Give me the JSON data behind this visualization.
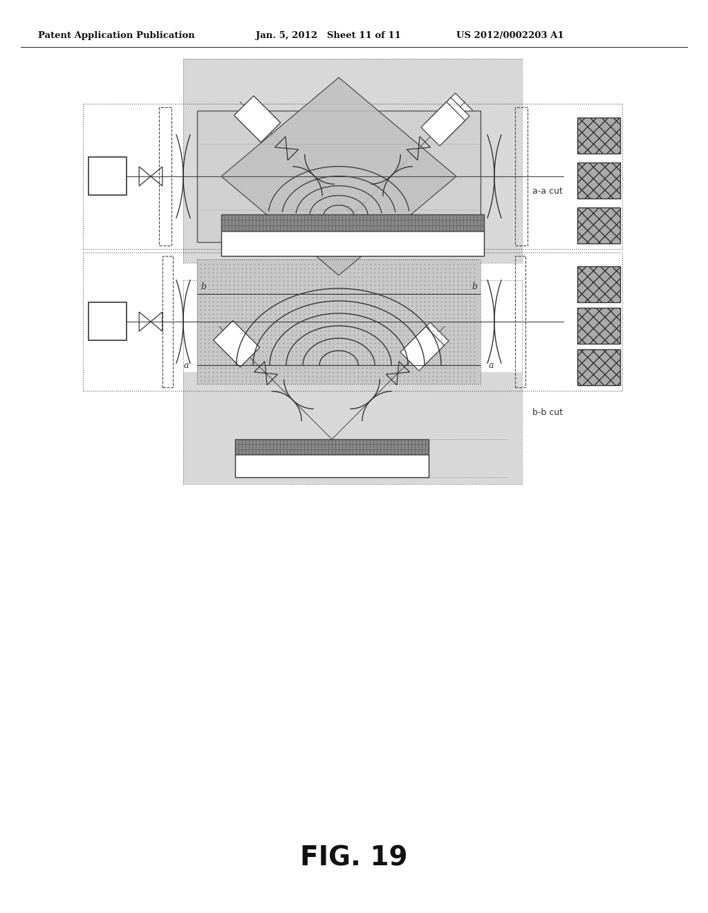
{
  "header_left": "Patent Application Publication",
  "header_mid": "Jan. 5, 2012   Sheet 11 of 11",
  "header_right": "US 2012/0002203 A1",
  "fig_label": "FIG. 19",
  "label_aa": "a-a cut",
  "label_bb": "b-b cut",
  "bg_color": "#ffffff",
  "panel_bg": "#e0e0e0",
  "hatched_bg": "#c8c8c8"
}
